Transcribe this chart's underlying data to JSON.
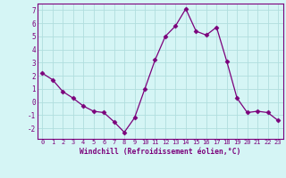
{
  "x": [
    0,
    1,
    2,
    3,
    4,
    5,
    6,
    7,
    8,
    9,
    10,
    11,
    12,
    13,
    14,
    15,
    16,
    17,
    18,
    19,
    20,
    21,
    22,
    23
  ],
  "y": [
    2.2,
    1.7,
    0.8,
    0.3,
    -0.3,
    -0.7,
    -0.8,
    -1.5,
    -2.3,
    -1.2,
    1.0,
    3.2,
    5.0,
    5.8,
    7.1,
    5.4,
    5.1,
    5.7,
    3.1,
    0.3,
    -0.8,
    -0.7,
    -0.8,
    -1.4
  ],
  "line_color": "#7b007b",
  "marker": "D",
  "marker_size": 2.5,
  "bg_color": "#d5f5f5",
  "grid_color": "#b0dede",
  "xlabel": "Windchill (Refroidissement éolien,°C)",
  "xlabel_color": "#7b007b",
  "tick_color": "#7b007b",
  "spine_color": "#7b007b",
  "ylim": [
    -2.8,
    7.5
  ],
  "xlim": [
    -0.5,
    23.5
  ],
  "yticks": [
    -2,
    -1,
    0,
    1,
    2,
    3,
    4,
    5,
    6,
    7
  ],
  "xticks": [
    0,
    1,
    2,
    3,
    4,
    5,
    6,
    7,
    8,
    9,
    10,
    11,
    12,
    13,
    14,
    15,
    16,
    17,
    18,
    19,
    20,
    21,
    22,
    23
  ],
  "xtick_labels": [
    "0",
    "1",
    "2",
    "3",
    "4",
    "5",
    "6",
    "7",
    "8",
    "9",
    "10",
    "11",
    "12",
    "13",
    "14",
    "15",
    "16",
    "17",
    "18",
    "19",
    "20",
    "21",
    "22",
    "23"
  ],
  "fig_width": 3.2,
  "fig_height": 2.0,
  "dpi": 100
}
